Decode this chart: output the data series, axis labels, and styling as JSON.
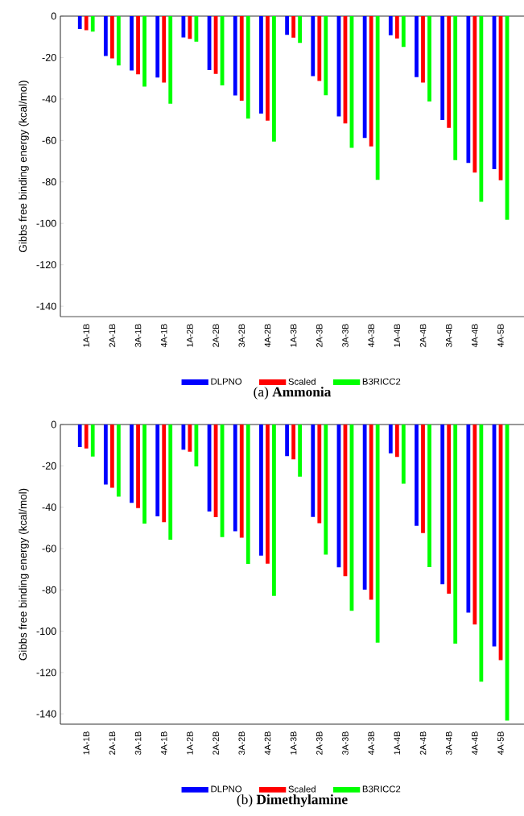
{
  "chart_data": [
    {
      "type": "bar",
      "title": "(a) **Ammonia**",
      "ylabel": "Gibbs free binding energy (kcal/mol)",
      "categories": [
        "1A-1B",
        "2A-1B",
        "3A-1B",
        "4A-1B",
        "1A-2B",
        "2A-2B",
        "3A-2B",
        "4A-2B",
        "1A-3B",
        "2A-3B",
        "3A-3B",
        "4A-3B",
        "1A-4B",
        "2A-4B",
        "3A-4B",
        "4A-4B",
        "4A-5B"
      ],
      "series": [
        {
          "name": "DLPNO",
          "color": "#0000ff",
          "values": [
            -6.2,
            -19.2,
            -26.2,
            -29.6,
            -10.3,
            -26.0,
            -38.3,
            -47.0,
            -9.0,
            -29.0,
            -48.4,
            -58.8,
            -9.2,
            -29.4,
            -50.1,
            -70.8,
            -73.9
          ]
        },
        {
          "name": "Scaled",
          "color": "#ff0000",
          "values": [
            -6.8,
            -20.4,
            -28.1,
            -32.1,
            -11.0,
            -27.9,
            -40.8,
            -50.4,
            -10.4,
            -31.3,
            -51.8,
            -62.9,
            -10.8,
            -32.1,
            -53.9,
            -75.5,
            -79.2
          ]
        },
        {
          "name": "B3RICC2",
          "color": "#00ff00",
          "values": [
            -7.5,
            -23.8,
            -34.0,
            -42.3,
            -12.3,
            -33.4,
            -49.5,
            -60.5,
            -12.9,
            -38.2,
            -63.6,
            -79.0,
            -14.9,
            -41.2,
            -69.5,
            -89.6,
            -98.3
          ]
        }
      ],
      "ylim": [
        -145,
        0
      ],
      "yticks": [
        0,
        -20,
        -40,
        -60,
        -80,
        -100,
        -120,
        -140
      ],
      "legend": "bottom"
    },
    {
      "type": "bar",
      "title": "(b) **Dimethylamine**",
      "ylabel": "Gibbs free binding energy (kcal/mol)",
      "categories": [
        "1A-1B",
        "2A-1B",
        "3A-1B",
        "4A-1B",
        "1A-2B",
        "2A-2B",
        "3A-2B",
        "4A-2B",
        "1A-3B",
        "2A-3B",
        "3A-3B",
        "4A-3B",
        "1A-4B",
        "2A-4B",
        "3A-4B",
        "4A-4B",
        "4A-5B"
      ],
      "series": [
        {
          "name": "DLPNO",
          "color": "#0000ff",
          "values": [
            -10.9,
            -29.0,
            -37.9,
            -44.4,
            -12.2,
            -42.1,
            -51.6,
            -63.4,
            -15.3,
            -44.7,
            -69.1,
            -79.9,
            -13.9,
            -49.0,
            -77.3,
            -91.0,
            -107.4
          ]
        },
        {
          "name": "Scaled",
          "color": "#ff0000",
          "values": [
            -11.6,
            -30.6,
            -40.4,
            -47.3,
            -13.2,
            -44.8,
            -54.8,
            -67.3,
            -16.9,
            -47.7,
            -73.4,
            -84.8,
            -15.7,
            -52.5,
            -81.9,
            -96.8,
            -114.0
          ]
        },
        {
          "name": "B3RICC2",
          "color": "#00ff00",
          "values": [
            -15.5,
            -34.9,
            -47.9,
            -55.7,
            -20.3,
            -54.5,
            -67.4,
            -82.9,
            -25.2,
            -62.9,
            -90.1,
            -105.5,
            -28.6,
            -69.0,
            -106.0,
            -124.4,
            -143.2
          ]
        }
      ],
      "ylim": [
        -145,
        0
      ],
      "yticks": [
        0,
        -20,
        -40,
        -60,
        -80,
        -100,
        -120,
        -140
      ],
      "legend": "bottom"
    }
  ]
}
